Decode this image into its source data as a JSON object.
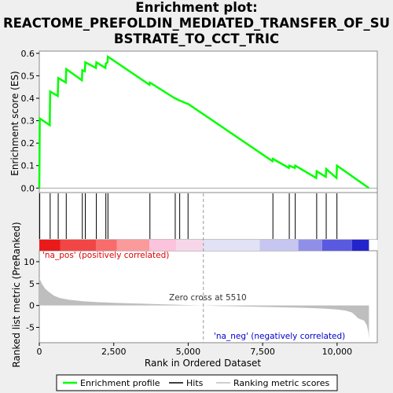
{
  "title_lines": [
    "Enrichment plot:",
    "REACTOME_PREFOLDIN_MEDIATED_TRANSFER_OF_SU",
    "BSTRATE_TO_CCT_TRIC"
  ],
  "colors": {
    "es_line": "#00ff00",
    "hit": "#000000",
    "metric_fill": "#bebebe",
    "pos_label": "#e00000",
    "neg_label": "#0000cc",
    "zero_line": "#999999"
  },
  "chart_data": [
    {
      "type": "line",
      "panel": "enrichment-score",
      "ylabel": "Enrichment score (ES)",
      "ylim": [
        -0.02,
        0.61
      ],
      "yticks": [
        0.0,
        0.1,
        0.2,
        0.3,
        0.4,
        0.5,
        0.6
      ],
      "ytick_labels": [
        "0.0",
        "0.1",
        "0.2",
        "0.3",
        "0.4",
        "0.5",
        "0.6"
      ],
      "xlim": [
        0,
        11350
      ],
      "series": [
        {
          "name": "Enrichment profile",
          "x": [
            0,
            15,
            350,
            365,
            620,
            635,
            890,
            905,
            1430,
            1445,
            1530,
            1545,
            1900,
            1915,
            2220,
            2235,
            2290,
            2305,
            3700,
            3715,
            4550,
            4565,
            4700,
            4715,
            4980,
            4995,
            7830,
            7845,
            8380,
            8395,
            8580,
            8595,
            9300,
            9315,
            9620,
            9635,
            9980,
            9995,
            11070
          ],
          "y": [
            0.0,
            0.31,
            0.28,
            0.43,
            0.41,
            0.49,
            0.47,
            0.53,
            0.48,
            0.525,
            0.52,
            0.56,
            0.535,
            0.56,
            0.535,
            0.555,
            0.56,
            0.585,
            0.46,
            0.47,
            0.4,
            0.4,
            0.39,
            0.39,
            0.375,
            0.375,
            0.12,
            0.13,
            0.09,
            0.1,
            0.09,
            0.1,
            0.045,
            0.075,
            0.05,
            0.085,
            0.045,
            0.1,
            0.0
          ]
        }
      ],
      "hits": [
        15,
        365,
        635,
        905,
        1445,
        1545,
        1915,
        2235,
        2305,
        3715,
        4565,
        4715,
        4995,
        7845,
        8395,
        8595,
        9315,
        9635,
        9995
      ]
    },
    {
      "type": "area",
      "panel": "ranked-list-metric",
      "ylabel": "Ranked list metric (PreRanked)",
      "xlabel": "Rank in Ordered Dataset",
      "xlim": [
        0,
        11350
      ],
      "ylim": [
        -8.5,
        12.5
      ],
      "yticks": [
        -5,
        0,
        5,
        10
      ],
      "ytick_labels": [
        "-5",
        "0",
        "5",
        "10"
      ],
      "xticks": [
        0,
        2500,
        5000,
        7500,
        10000
      ],
      "xtick_labels": [
        "0",
        "2,500",
        "5,000",
        "7,500",
        "10,000"
      ],
      "metric": {
        "x": [
          0,
          50,
          100,
          200,
          300,
          400,
          500,
          700,
          1000,
          1500,
          2000,
          2500,
          3000,
          3500,
          4000,
          4500,
          5000,
          5510,
          6000,
          7000,
          8000,
          9000,
          9500,
          10000,
          10300,
          10500,
          10600,
          10700,
          10800,
          10900,
          11000,
          11050,
          11070
        ],
        "y": [
          6.3,
          5.5,
          4.8,
          3.8,
          3.2,
          2.7,
          2.2,
          1.7,
          1.3,
          0.95,
          0.75,
          0.6,
          0.5,
          0.4,
          0.3,
          0.2,
          0.1,
          0.0,
          -0.1,
          -0.25,
          -0.4,
          -0.55,
          -0.7,
          -0.9,
          -1.2,
          -1.6,
          -2.2,
          -2.9,
          -3.2,
          -3.4,
          -4.5,
          -6.0,
          -7.6
        ]
      },
      "zero_cross": 5510,
      "annotations": {
        "pos_label": "'na_pos' (positively correlated)",
        "neg_label": "'na_neg' (negatively correlated)",
        "zero_cross_label": "Zero cross at 5510"
      },
      "heatmap_segments": [
        {
          "x0": 0,
          "x1": 700,
          "color": "#ea1a1a"
        },
        {
          "x0": 700,
          "x1": 1900,
          "color": "#f24545"
        },
        {
          "x0": 1900,
          "x1": 2600,
          "color": "#f86c6c"
        },
        {
          "x0": 2600,
          "x1": 3700,
          "color": "#fb9a9a"
        },
        {
          "x0": 3700,
          "x1": 4600,
          "color": "#fcc3dc"
        },
        {
          "x0": 4600,
          "x1": 5510,
          "color": "#f8d6ea"
        },
        {
          "x0": 5510,
          "x1": 7400,
          "color": "#e2e2f6"
        },
        {
          "x0": 7400,
          "x1": 8700,
          "color": "#c6c6f0"
        },
        {
          "x0": 8700,
          "x1": 9500,
          "color": "#8f8fe8"
        },
        {
          "x0": 9500,
          "x1": 10500,
          "color": "#5a5ae0"
        },
        {
          "x0": 10500,
          "x1": 11070,
          "color": "#2424cc"
        }
      ]
    }
  ],
  "legend": {
    "items": [
      {
        "label": "Enrichment profile",
        "color": "#00ff00",
        "kind": "es"
      },
      {
        "label": "Hits",
        "color": "#000000",
        "kind": "hit"
      },
      {
        "label": "Ranking metric scores",
        "color": "#bebebe",
        "kind": "metric"
      }
    ]
  }
}
